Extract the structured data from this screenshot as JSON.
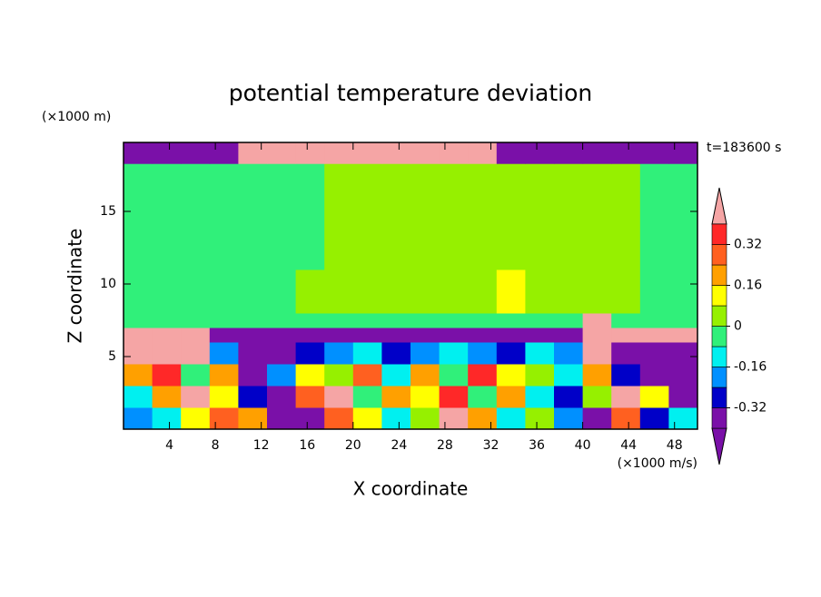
{
  "chart_data": {
    "type": "contour",
    "title": "potential temperature deviation",
    "xlabel": "X coordinate",
    "ylabel": "Z coordinate",
    "xunit": "(×1000 m/s)",
    "yunit": "(×1000 m)",
    "time_label": "t=183600 s",
    "xlim": [
      0,
      50
    ],
    "ylim": [
      0,
      19.75
    ],
    "xticks": [
      4,
      8,
      12,
      16,
      20,
      24,
      28,
      32,
      36,
      40,
      44,
      48
    ],
    "yticks": [
      5,
      10,
      15
    ],
    "xbins": [
      0,
      2.5,
      5,
      7.5,
      10,
      12.5,
      15,
      17.5,
      20,
      22.5,
      25,
      27.5,
      30,
      32.5,
      35,
      37.5,
      40,
      42.5,
      45,
      47.5,
      50
    ],
    "ybins": [
      0,
      1.5,
      3,
      4.5,
      6,
      7,
      8,
      11,
      14,
      18.3,
      19.75
    ],
    "z": [
      [
        -0.2,
        -0.12,
        0.1,
        0.3,
        0.2,
        -0.36,
        -0.36,
        0.25,
        0.12,
        -0.12,
        0.04,
        0.45,
        0.2,
        -0.12,
        0.04,
        -0.2,
        -0.36,
        0.3,
        -0.28,
        -0.12
      ],
      [
        -0.12,
        0.2,
        0.45,
        0.1,
        -0.28,
        -0.36,
        0.28,
        0.45,
        -0.04,
        0.2,
        0.12,
        0.36,
        -0.04,
        0.2,
        -0.12,
        -0.28,
        0.04,
        0.45,
        0.12,
        -0.36
      ],
      [
        0.2,
        0.36,
        -0.04,
        0.2,
        -0.36,
        -0.2,
        0.12,
        0.04,
        0.28,
        -0.12,
        0.2,
        -0.04,
        0.36,
        0.12,
        0.04,
        -0.12,
        0.2,
        -0.28,
        -0.36,
        -0.36
      ],
      [
        0.45,
        0.45,
        0.45,
        -0.2,
        -0.36,
        -0.36,
        -0.28,
        -0.2,
        -0.12,
        -0.28,
        -0.2,
        -0.12,
        -0.2,
        -0.28,
        -0.12,
        -0.2,
        0.45,
        -0.36,
        -0.36,
        -0.36
      ],
      [
        0.45,
        0.45,
        0.45,
        -0.36,
        -0.36,
        -0.36,
        -0.36,
        -0.36,
        -0.36,
        -0.36,
        -0.36,
        -0.36,
        -0.36,
        -0.36,
        -0.36,
        -0.36,
        0.45,
        0.45,
        0.45,
        0.45
      ],
      [
        -0.04,
        -0.04,
        -0.04,
        -0.04,
        -0.04,
        -0.04,
        -0.04,
        -0.04,
        -0.04,
        -0.04,
        -0.04,
        -0.04,
        -0.04,
        -0.04,
        -0.04,
        -0.04,
        0.45,
        -0.04,
        -0.04,
        -0.04
      ],
      [
        -0.04,
        -0.04,
        -0.04,
        -0.04,
        -0.04,
        -0.04,
        0.04,
        0.04,
        0.04,
        0.04,
        0.04,
        0.04,
        0.04,
        0.12,
        0.04,
        0.04,
        0.04,
        0.04,
        -0.04,
        -0.04
      ],
      [
        -0.04,
        -0.04,
        -0.04,
        -0.04,
        -0.04,
        -0.04,
        -0.04,
        0.04,
        0.04,
        0.04,
        0.04,
        0.04,
        0.04,
        0.04,
        0.04,
        0.04,
        0.04,
        0.04,
        -0.04,
        -0.04
      ],
      [
        -0.04,
        -0.04,
        -0.04,
        -0.04,
        -0.04,
        -0.04,
        -0.04,
        0.04,
        0.04,
        0.04,
        0.04,
        0.04,
        0.04,
        0.04,
        0.04,
        0.04,
        0.04,
        0.04,
        -0.04,
        -0.04
      ],
      [
        -0.36,
        -0.36,
        -0.36,
        -0.36,
        0.45,
        0.45,
        0.45,
        0.45,
        0.45,
        0.45,
        0.45,
        0.45,
        0.45,
        -0.36,
        -0.36,
        -0.36,
        -0.36,
        -0.36,
        -0.36,
        -0.36
      ]
    ],
    "levels": [
      -0.4,
      -0.32,
      -0.24,
      -0.16,
      -0.08,
      0,
      0.08,
      0.16,
      0.24,
      0.32,
      0.4
    ],
    "colors": [
      "#7a10a8",
      "#7a10a8",
      "#0000c8",
      "#0090ff",
      "#00f0f0",
      "#30f07a",
      "#96f000",
      "#ffff00",
      "#ffa000",
      "#ff6020",
      "#ff2828",
      "#f5a5a5"
    ],
    "colorbar_ticks": [
      0.32,
      0.16,
      0,
      -0.16,
      -0.32
    ]
  }
}
